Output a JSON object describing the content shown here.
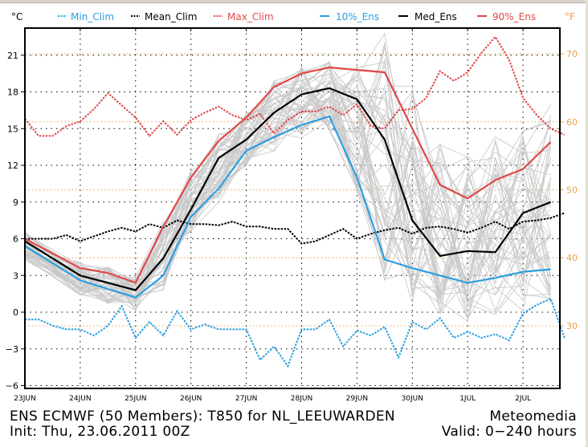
{
  "chart_data": {
    "type": "line",
    "title": "ENS ECMWF (50 Members): T850 for NL_LEEUWARDEN",
    "subtitle": "Init: Thu, 23.06.2011 00Z",
    "source": "Meteomedia",
    "valid": "Valid: 0-240 hours",
    "ylabel_left": "°C",
    "ylabel_right": "°F",
    "ylim": [
      -6.5,
      24.2
    ],
    "xlim_days": [
      0,
      9.7
    ],
    "y_ticks": [
      -6,
      -3,
      0,
      3,
      6,
      9,
      12,
      15,
      18,
      21
    ],
    "y_tick_labels": [
      "−6",
      "−3",
      "0",
      "3",
      "6",
      "9",
      "12",
      "15",
      "18",
      "21"
    ],
    "y_right_ticks_f": [
      30,
      40,
      50,
      60,
      70
    ],
    "x_ticks_days": [
      0,
      1,
      2,
      3,
      4,
      5,
      6,
      7,
      8,
      9
    ],
    "x_tick_labels": [
      "23JUN",
      "24JUN",
      "25JUN",
      "26JUN",
      "27JUN",
      "28JUN",
      "29JUN",
      "30JUN",
      "1JUL",
      "2JUL"
    ],
    "grid": true,
    "legend": [
      {
        "name": "Min_Clim",
        "style": "dashed",
        "color": "#2a9fe0"
      },
      {
        "name": "Mean_Clim",
        "style": "dashed",
        "color": "#000000"
      },
      {
        "name": "Max_Clim",
        "style": "dashed",
        "color": "#e04040"
      },
      {
        "name": "10%_Ens",
        "style": "solid",
        "color": "#2a9fe0"
      },
      {
        "name": "Med_Ens",
        "style": "solid",
        "color": "#000000"
      },
      {
        "name": "90%_Ens",
        "style": "solid",
        "color": "#e04040"
      }
    ],
    "legend_position": "top",
    "x_ens_days": [
      0,
      1,
      1.5,
      2,
      2.5,
      3,
      3.5,
      4,
      4.5,
      5,
      5.5,
      6,
      6.5,
      7,
      7.5,
      8,
      8.5,
      9,
      9.5
    ],
    "series": [
      {
        "name": "10%_Ens",
        "values": [
          5.4,
          2.6,
          1.9,
          1.2,
          3.0,
          7.8,
          10.1,
          13.2,
          14.3,
          15.3,
          16.0,
          11.0,
          4.3,
          3.6,
          3.0,
          2.4,
          2.8,
          3.3,
          3.5
        ]
      },
      {
        "name": "Med_Ens",
        "values": [
          5.8,
          3.0,
          2.4,
          1.8,
          4.4,
          8.4,
          12.6,
          14.1,
          16.3,
          17.8,
          18.3,
          17.4,
          14.1,
          7.5,
          4.6,
          5.0,
          4.9,
          8.1,
          9.0
        ]
      },
      {
        "name": "90%_Ens",
        "values": [
          6.0,
          3.6,
          3.2,
          2.4,
          7.0,
          11.0,
          14.0,
          15.9,
          18.4,
          19.5,
          20.0,
          19.8,
          19.6,
          15.0,
          10.4,
          9.3,
          10.8,
          11.7,
          13.9
        ]
      }
    ],
    "x_clim_days": [
      0,
      0.25,
      0.5,
      0.75,
      1,
      1.25,
      1.5,
      1.75,
      2,
      2.25,
      2.5,
      2.75,
      3,
      3.25,
      3.5,
      3.75,
      4,
      4.25,
      4.5,
      4.75,
      5,
      5.25,
      5.5,
      5.75,
      6,
      6.25,
      6.5,
      6.75,
      7,
      7.25,
      7.5,
      7.75,
      8,
      8.25,
      8.5,
      8.75,
      9,
      9.25,
      9.5,
      9.75
    ],
    "clim_series": [
      {
        "name": "Min_Clim",
        "values": [
          -0.6,
          -0.6,
          -1.1,
          -1.4,
          -1.4,
          -1.9,
          -1.1,
          0.5,
          -2.1,
          -0.8,
          -1.9,
          0.1,
          -1.4,
          -1.0,
          -1.4,
          -1.4,
          -1.4,
          -3.9,
          -2.8,
          -4.4,
          -1.4,
          -1.4,
          -0.6,
          -2.8,
          -1.5,
          -1.9,
          -1.2,
          -3.7,
          -0.8,
          -1.4,
          -0.5,
          -2.1,
          -1.6,
          -2.1,
          -1.8,
          -2.3,
          -0.1,
          0.6,
          1.1,
          -2.1
        ]
      },
      {
        "name": "Mean_Clim",
        "values": [
          6.0,
          6.0,
          6.0,
          6.3,
          5.8,
          6.2,
          6.6,
          6.9,
          6.6,
          7.2,
          6.9,
          7.5,
          7.2,
          7.2,
          7.1,
          7.4,
          7.0,
          7.0,
          6.8,
          6.8,
          5.6,
          5.8,
          6.3,
          6.8,
          6.0,
          6.4,
          6.7,
          6.9,
          6.4,
          6.9,
          7.0,
          6.8,
          6.5,
          6.9,
          7.4,
          6.8,
          7.4,
          7.5,
          7.7,
          8.1
        ]
      },
      {
        "name": "Max_Clim",
        "values": [
          15.8,
          14.4,
          14.4,
          15.2,
          15.6,
          16.6,
          17.9,
          16.9,
          15.9,
          14.4,
          15.6,
          14.5,
          15.7,
          16.3,
          16.8,
          16.1,
          15.7,
          16.2,
          14.6,
          15.7,
          16.4,
          16.4,
          16.8,
          16.1,
          17.0,
          15.2,
          15.0,
          16.5,
          16.6,
          17.5,
          19.7,
          18.9,
          19.6,
          21.2,
          22.5,
          20.6,
          17.5,
          16.1,
          15.0,
          14.5
        ]
      }
    ],
    "members_note": "50 gray ensemble member traces spanning roughly between 10% and 90% envelopes",
    "f_reference_lines": [
      30,
      40,
      50,
      60,
      70
    ]
  },
  "legend_labels": {
    "min_clim": "Min_Clim",
    "mean_clim": "Mean_Clim",
    "max_clim": "Max_Clim",
    "p10": "10%_Ens",
    "med": "Med_Ens",
    "p90": "90%_Ens"
  },
  "units": {
    "left": "°C",
    "right": "°F"
  },
  "footer": {
    "line1": "ENS ECMWF (50 Members): T850 for NL_LEEUWARDEN",
    "line2": "Init: Thu, 23.06.2011 00Z",
    "source": "Meteomedia",
    "valid": "Valid: 0−240 hours"
  },
  "colors": {
    "blue": "#2a9fe0",
    "red": "#e04848",
    "black": "#000000",
    "orange": "#e8a050",
    "member_gray": "#c8c8c8"
  }
}
